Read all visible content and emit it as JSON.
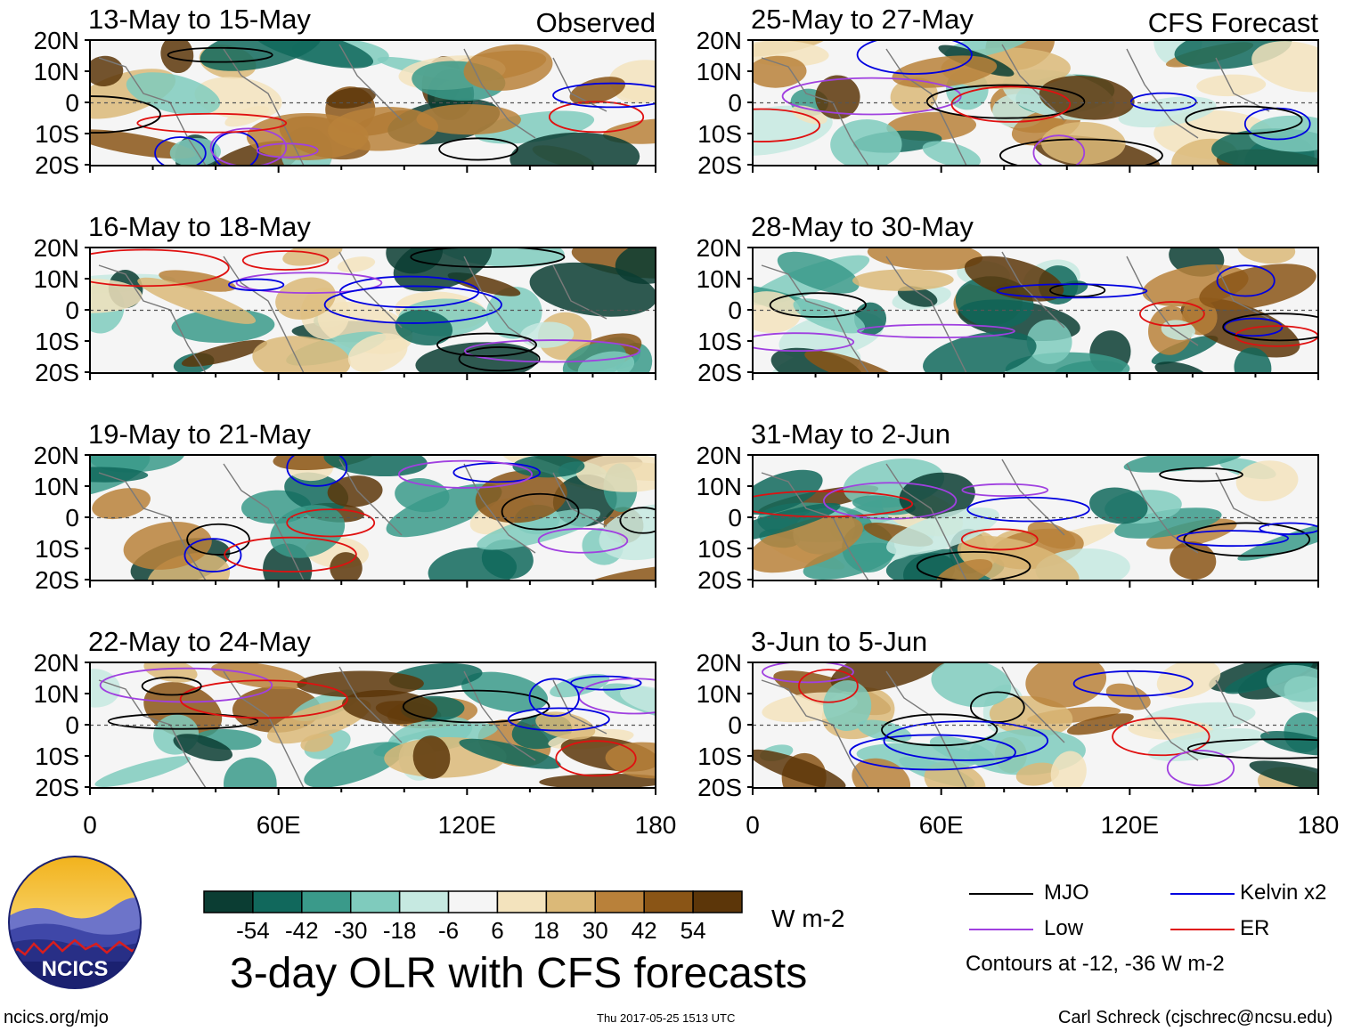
{
  "chart_data": {
    "type": "heatmap",
    "title": "3-day OLR with CFS forecasts",
    "variable": "OLR anomaly",
    "units": "W m-2",
    "x_range": [
      0,
      180
    ],
    "y_range": [
      -20,
      20
    ],
    "xticks": [
      "0",
      "60E",
      "120E",
      "180"
    ],
    "yticks": [
      "20N",
      "10N",
      "0",
      "10S",
      "20S"
    ],
    "columns": [
      {
        "label": "Observed",
        "panels": [
          "13-May to 15-May",
          "16-May to 18-May",
          "19-May to 21-May",
          "22-May to 24-May"
        ]
      },
      {
        "label": "CFS Forecast",
        "panels": [
          "25-May to 27-May",
          "28-May to 30-May",
          "31-May to 2-Jun",
          "3-Jun to 5-Jun"
        ]
      }
    ],
    "colorbar": {
      "levels": [
        "-54",
        "-42",
        "-30",
        "-18",
        "-6",
        "6",
        "18",
        "30",
        "42",
        "54"
      ],
      "colors": [
        "#0b3d33",
        "#11685c",
        "#3a9a8a",
        "#7fcbbd",
        "#c6e9e1",
        "#f5f5f5",
        "#f3e3bd",
        "#dbb978",
        "#b9813a",
        "#8a5516",
        "#5c3609"
      ]
    },
    "legend": [
      {
        "name": "MJO",
        "color": "#000000"
      },
      {
        "name": "Kelvin x2",
        "color": "#0000e0"
      },
      {
        "name": "Low",
        "color": "#a040e0"
      },
      {
        "name": "ER",
        "color": "#e01010"
      }
    ],
    "contour_note": "Contours at -12, -36 W m-2"
  },
  "footer": {
    "url": "ncics.org/mjo",
    "timestamp": "Thu 2017-05-25 1513 UTC",
    "credit": "Carl Schreck (cjschrec@ncsu.edu)",
    "logo_text": "NCICS"
  }
}
